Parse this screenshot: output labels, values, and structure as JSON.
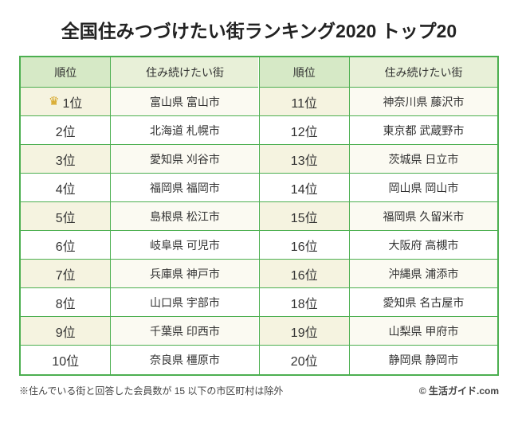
{
  "title": "全国住みつづけたい街ランキング2020 トップ20",
  "headers": {
    "rank": "順位",
    "city": "住み続けたい街"
  },
  "colors": {
    "border": "#4caf50",
    "header_rank_bg": "#d6e9c6",
    "header_city_bg": "#e8f0d8",
    "odd_rank_bg": "#f5f3e0",
    "odd_city_bg": "#fbfaf2",
    "even_bg": "#ffffff",
    "crown": "#d4a017",
    "text": "#333333"
  },
  "typography": {
    "title_fontsize": 23,
    "header_fontsize": 14,
    "rank_fontsize": 16,
    "city_fontsize": 14,
    "footer_fontsize": 12
  },
  "left": [
    {
      "rank": "1位",
      "city": "富山県 富山市",
      "crown": true
    },
    {
      "rank": "2位",
      "city": "北海道 札幌市"
    },
    {
      "rank": "3位",
      "city": "愛知県 刈谷市"
    },
    {
      "rank": "4位",
      "city": "福岡県 福岡市"
    },
    {
      "rank": "5位",
      "city": "島根県 松江市"
    },
    {
      "rank": "6位",
      "city": "岐阜県 可児市"
    },
    {
      "rank": "7位",
      "city": "兵庫県 神戸市"
    },
    {
      "rank": "8位",
      "city": "山口県 宇部市"
    },
    {
      "rank": "9位",
      "city": "千葉県 印西市"
    },
    {
      "rank": "10位",
      "city": "奈良県 橿原市"
    }
  ],
  "right": [
    {
      "rank": "11位",
      "city": "神奈川県 藤沢市"
    },
    {
      "rank": "12位",
      "city": "東京都 武蔵野市"
    },
    {
      "rank": "13位",
      "city": "茨城県 日立市"
    },
    {
      "rank": "14位",
      "city": "岡山県 岡山市"
    },
    {
      "rank": "15位",
      "city": "福岡県 久留米市"
    },
    {
      "rank": "16位",
      "city": "大阪府 高槻市"
    },
    {
      "rank": "16位",
      "city": "沖縄県 浦添市"
    },
    {
      "rank": "18位",
      "city": "愛知県 名古屋市"
    },
    {
      "rank": "19位",
      "city": "山梨県 甲府市"
    },
    {
      "rank": "20位",
      "city": "静岡県 静岡市"
    }
  ],
  "note": "※住んでいる街と回答した会員数が 15 以下の市区町村は除外",
  "credit": "© 生活ガイド.com",
  "crown_glyph": "♛"
}
